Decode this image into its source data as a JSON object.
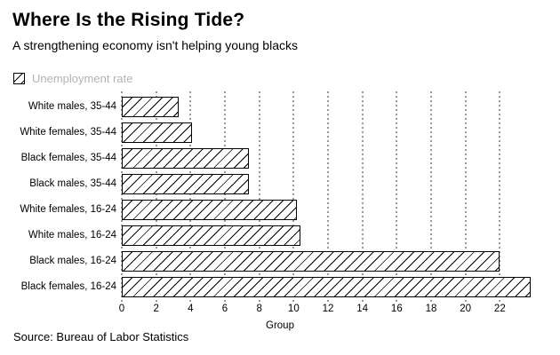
{
  "header": {
    "title": "Where Is the Rising Tide?",
    "subtitle": "A strengthening economy isn't helping young blacks"
  },
  "legend": {
    "label": "Unemployment rate"
  },
  "chart_data": {
    "type": "bar",
    "orientation": "horizontal",
    "title": "Where Is the Rising Tide?",
    "subtitle": "A strengthening economy isn't helping young blacks",
    "categories": [
      "White males, 35-44",
      "White females, 35-44",
      "Black females, 35-44",
      "Black males, 35-44",
      "White females, 16-24",
      "White males, 16-24",
      "Black males, 16-24",
      "Black females, 16-24"
    ],
    "values": [
      3.3,
      4.1,
      7.4,
      7.4,
      10.2,
      10.4,
      22.0,
      23.8
    ],
    "series_name": "Unemployment rate",
    "xlabel": "Group",
    "ylabel": "",
    "xticks": [
      0,
      2,
      4,
      6,
      8,
      10,
      12,
      14,
      16,
      18,
      20,
      22
    ],
    "xlim": [
      0,
      24
    ],
    "grid": "vertical-dotted",
    "bar_style": "diagonal-hatch",
    "legend_position": "top-left"
  },
  "footer": {
    "source": "Source: Bureau of Labor Statistics"
  },
  "colors": {
    "background": "#ffffff",
    "bar_fill": "#ffffff",
    "bar_border": "#000000",
    "hatch": "#000000",
    "grid": "#999999",
    "legend_text": "#b3b3b3",
    "text": "#000000"
  }
}
